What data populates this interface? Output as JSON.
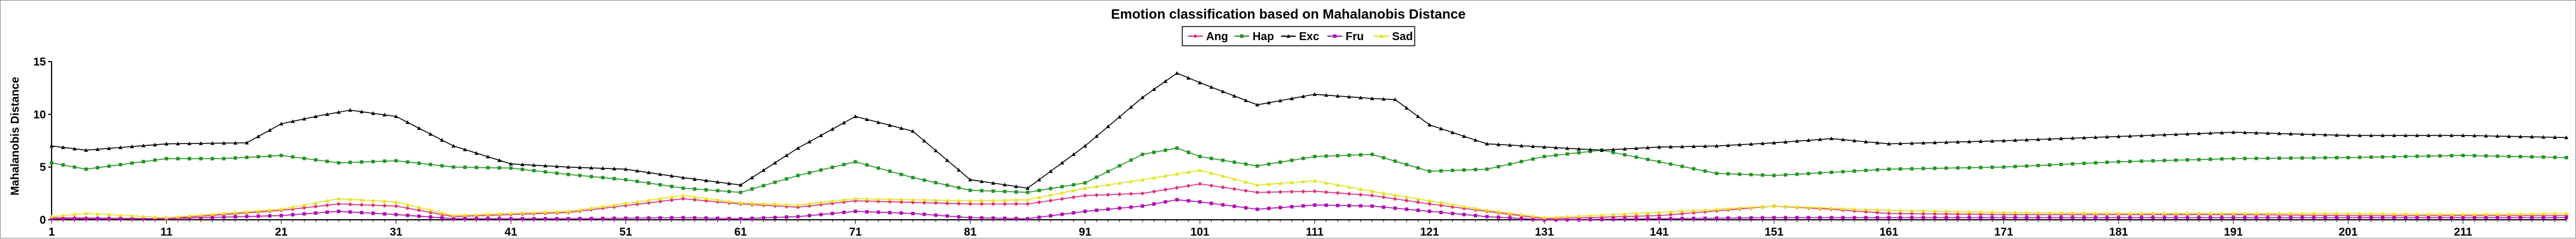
{
  "chart_data": {
    "type": "line",
    "title": "Emotion classification based on Mahalanobis Distance",
    "xlabel": "",
    "ylabel": "Mahalanobis Distance",
    "xlim": [
      1,
      220
    ],
    "ylim": [
      0,
      15
    ],
    "yticks": [
      0,
      5,
      10,
      15
    ],
    "xticks": [
      1,
      11,
      21,
      31,
      41,
      51,
      61,
      71,
      81,
      91,
      101,
      111,
      121,
      131,
      141,
      151,
      161,
      171,
      181,
      191,
      201,
      211
    ],
    "grid": false,
    "legend_position": "top-center",
    "series": [
      {
        "name": "Ang",
        "color": "#ff1a75",
        "marker": "diamond",
        "anchors": [
          [
            1,
            0.2
          ],
          [
            11,
            0.1
          ],
          [
            21,
            0.9
          ],
          [
            26,
            1.5
          ],
          [
            31,
            1.3
          ],
          [
            36,
            0.3
          ],
          [
            46,
            0.7
          ],
          [
            56,
            2.0
          ],
          [
            61,
            1.5
          ],
          [
            66,
            1.2
          ],
          [
            71,
            1.8
          ],
          [
            81,
            1.5
          ],
          [
            86,
            1.5
          ],
          [
            91,
            2.3
          ],
          [
            96,
            2.5
          ],
          [
            101,
            3.4
          ],
          [
            106,
            2.6
          ],
          [
            111,
            2.7
          ],
          [
            116,
            2.3
          ],
          [
            121,
            1.5
          ],
          [
            131,
            0.1
          ],
          [
            141,
            0.4
          ],
          [
            151,
            1.3
          ],
          [
            156,
            1.0
          ],
          [
            161,
            0.6
          ],
          [
            171,
            0.5
          ],
          [
            181,
            0.5
          ],
          [
            191,
            0.5
          ],
          [
            201,
            0.4
          ],
          [
            211,
            0.4
          ],
          [
            220,
            0.4
          ]
        ]
      },
      {
        "name": "Hap",
        "color": "#1a9a1a",
        "marker": "square",
        "anchors": [
          [
            1,
            5.4
          ],
          [
            4,
            4.8
          ],
          [
            11,
            5.8
          ],
          [
            16,
            5.8
          ],
          [
            21,
            6.1
          ],
          [
            26,
            5.4
          ],
          [
            31,
            5.6
          ],
          [
            36,
            5.0
          ],
          [
            41,
            4.9
          ],
          [
            46,
            4.3
          ],
          [
            51,
            3.8
          ],
          [
            56,
            3.0
          ],
          [
            61,
            2.6
          ],
          [
            66,
            4.2
          ],
          [
            71,
            5.5
          ],
          [
            76,
            4.0
          ],
          [
            81,
            2.8
          ],
          [
            86,
            2.6
          ],
          [
            91,
            3.5
          ],
          [
            96,
            6.2
          ],
          [
            99,
            6.8
          ],
          [
            101,
            6.0
          ],
          [
            106,
            5.1
          ],
          [
            111,
            6.0
          ],
          [
            116,
            6.2
          ],
          [
            121,
            4.6
          ],
          [
            126,
            4.8
          ],
          [
            131,
            6.0
          ],
          [
            136,
            6.6
          ],
          [
            141,
            5.5
          ],
          [
            146,
            4.4
          ],
          [
            151,
            4.2
          ],
          [
            161,
            4.8
          ],
          [
            171,
            5.0
          ],
          [
            181,
            5.5
          ],
          [
            191,
            5.8
          ],
          [
            201,
            5.9
          ],
          [
            211,
            6.1
          ],
          [
            220,
            5.9
          ]
        ]
      },
      {
        "name": "Exc",
        "color": "#000000",
        "marker": "triangle",
        "anchors": [
          [
            1,
            7.0
          ],
          [
            4,
            6.6
          ],
          [
            11,
            7.2
          ],
          [
            18,
            7.3
          ],
          [
            21,
            9.1
          ],
          [
            24,
            9.8
          ],
          [
            27,
            10.4
          ],
          [
            31,
            9.8
          ],
          [
            36,
            7.0
          ],
          [
            41,
            5.3
          ],
          [
            46,
            5.0
          ],
          [
            51,
            4.8
          ],
          [
            56,
            4.0
          ],
          [
            61,
            3.3
          ],
          [
            66,
            6.8
          ],
          [
            71,
            9.8
          ],
          [
            76,
            8.4
          ],
          [
            81,
            3.8
          ],
          [
            86,
            3.0
          ],
          [
            91,
            7.0
          ],
          [
            96,
            11.6
          ],
          [
            99,
            13.9
          ],
          [
            101,
            13.0
          ],
          [
            106,
            10.9
          ],
          [
            111,
            11.9
          ],
          [
            116,
            11.5
          ],
          [
            118,
            11.4
          ],
          [
            121,
            9.0
          ],
          [
            126,
            7.2
          ],
          [
            131,
            6.9
          ],
          [
            136,
            6.6
          ],
          [
            141,
            6.9
          ],
          [
            146,
            7.0
          ],
          [
            151,
            7.3
          ],
          [
            156,
            7.7
          ],
          [
            161,
            7.2
          ],
          [
            171,
            7.5
          ],
          [
            181,
            7.9
          ],
          [
            191,
            8.3
          ],
          [
            201,
            8.0
          ],
          [
            211,
            8.0
          ],
          [
            220,
            7.8
          ]
        ]
      },
      {
        "name": "Fru",
        "color": "#c000c0",
        "marker": "square",
        "anchors": [
          [
            1,
            0.1
          ],
          [
            11,
            0.1
          ],
          [
            21,
            0.4
          ],
          [
            26,
            0.8
          ],
          [
            31,
            0.5
          ],
          [
            36,
            0.1
          ],
          [
            46,
            0.1
          ],
          [
            56,
            0.2
          ],
          [
            61,
            0.1
          ],
          [
            66,
            0.3
          ],
          [
            71,
            0.8
          ],
          [
            76,
            0.6
          ],
          [
            81,
            0.2
          ],
          [
            86,
            0.1
          ],
          [
            91,
            0.8
          ],
          [
            96,
            1.3
          ],
          [
            99,
            1.9
          ],
          [
            101,
            1.7
          ],
          [
            106,
            1.0
          ],
          [
            111,
            1.4
          ],
          [
            116,
            1.3
          ],
          [
            121,
            0.8
          ],
          [
            126,
            0.3
          ],
          [
            131,
            0.0
          ],
          [
            141,
            0.1
          ],
          [
            151,
            0.2
          ],
          [
            161,
            0.2
          ],
          [
            171,
            0.2
          ],
          [
            181,
            0.2
          ],
          [
            191,
            0.2
          ],
          [
            201,
            0.2
          ],
          [
            211,
            0.2
          ],
          [
            220,
            0.2
          ]
        ]
      },
      {
        "name": "Sad",
        "color": "#e6e600",
        "marker": "triangle",
        "anchors": [
          [
            1,
            0.3
          ],
          [
            4,
            0.6
          ],
          [
            11,
            0.2
          ],
          [
            21,
            1.0
          ],
          [
            26,
            2.0
          ],
          [
            31,
            1.7
          ],
          [
            36,
            0.4
          ],
          [
            46,
            0.8
          ],
          [
            56,
            2.3
          ],
          [
            61,
            1.6
          ],
          [
            66,
            1.4
          ],
          [
            71,
            2.0
          ],
          [
            81,
            1.8
          ],
          [
            86,
            1.9
          ],
          [
            91,
            3.0
          ],
          [
            96,
            3.8
          ],
          [
            101,
            4.7
          ],
          [
            106,
            3.3
          ],
          [
            111,
            3.7
          ],
          [
            116,
            2.7
          ],
          [
            121,
            1.8
          ],
          [
            126,
            0.9
          ],
          [
            131,
            0.2
          ],
          [
            141,
            0.7
          ],
          [
            151,
            1.3
          ],
          [
            156,
            1.1
          ],
          [
            161,
            0.9
          ],
          [
            171,
            0.7
          ],
          [
            181,
            0.6
          ],
          [
            191,
            0.6
          ],
          [
            201,
            0.6
          ],
          [
            211,
            0.5
          ],
          [
            220,
            0.6
          ]
        ]
      }
    ]
  }
}
